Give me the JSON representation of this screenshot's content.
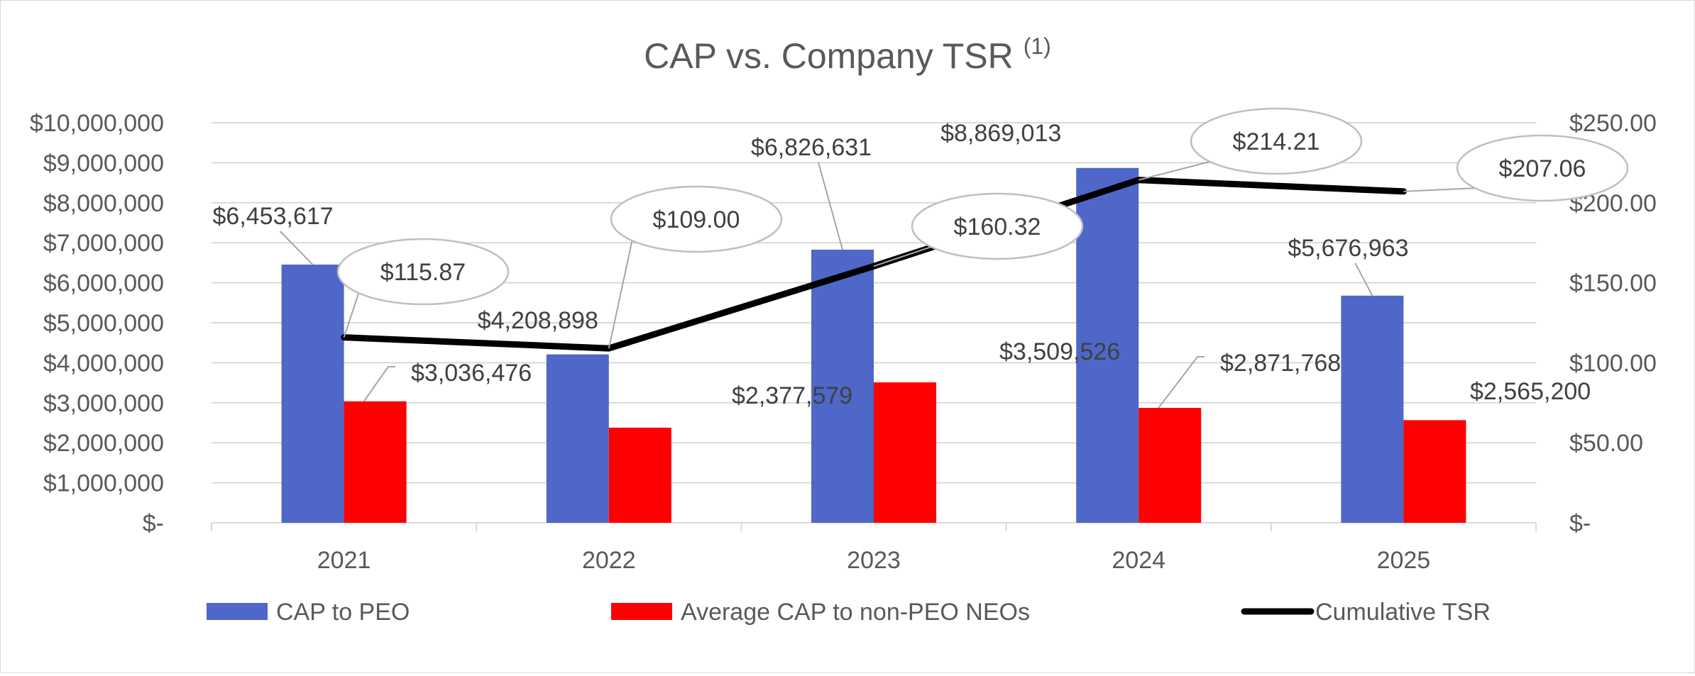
{
  "chart_data": {
    "type": "bar",
    "title": "CAP vs. Company TSR",
    "title_superscript": "(1)",
    "categories": [
      "2021",
      "2022",
      "2023",
      "2024",
      "2025"
    ],
    "series": [
      {
        "name": "CAP to PEO",
        "kind": "bar",
        "axis": "left",
        "color": "#4e67c8",
        "values": [
          6453617,
          4208898,
          6826631,
          8869013,
          5676963
        ],
        "labels": [
          "$6,453,617",
          "$4,208,898",
          "$6,826,631",
          "$8,869,013",
          "$5,676,963"
        ]
      },
      {
        "name": "Average CAP to non-PEO NEOs",
        "kind": "bar",
        "axis": "left",
        "color": "#ff0000",
        "values": [
          3036476,
          2377579,
          3509526,
          2871768,
          2565200
        ],
        "labels": [
          "$3,036,476",
          "$2,377,579",
          "$3,509,526",
          "$2,871,768",
          "$2,565,200"
        ]
      },
      {
        "name": "Cumulative TSR",
        "kind": "line",
        "axis": "right",
        "color": "#000000",
        "values": [
          115.87,
          109.0,
          160.32,
          214.21,
          207.06
        ],
        "labels": [
          "$115.87",
          "$109.00",
          "$160.32",
          "$214.21",
          "$207.06"
        ]
      }
    ],
    "y_left": {
      "range": [
        0,
        10000000
      ],
      "ticks": [
        "$-",
        "$1,000,000",
        "$2,000,000",
        "$3,000,000",
        "$4,000,000",
        "$5,000,000",
        "$6,000,000",
        "$7,000,000",
        "$8,000,000",
        "$9,000,000",
        "$10,000,000"
      ]
    },
    "y_right": {
      "range": [
        0,
        250
      ],
      "ticks": [
        "$-",
        "$50.00",
        "$100.00",
        "$150.00",
        "$200.00",
        "$250.00"
      ]
    },
    "grid": true,
    "legend_position": "bottom"
  }
}
